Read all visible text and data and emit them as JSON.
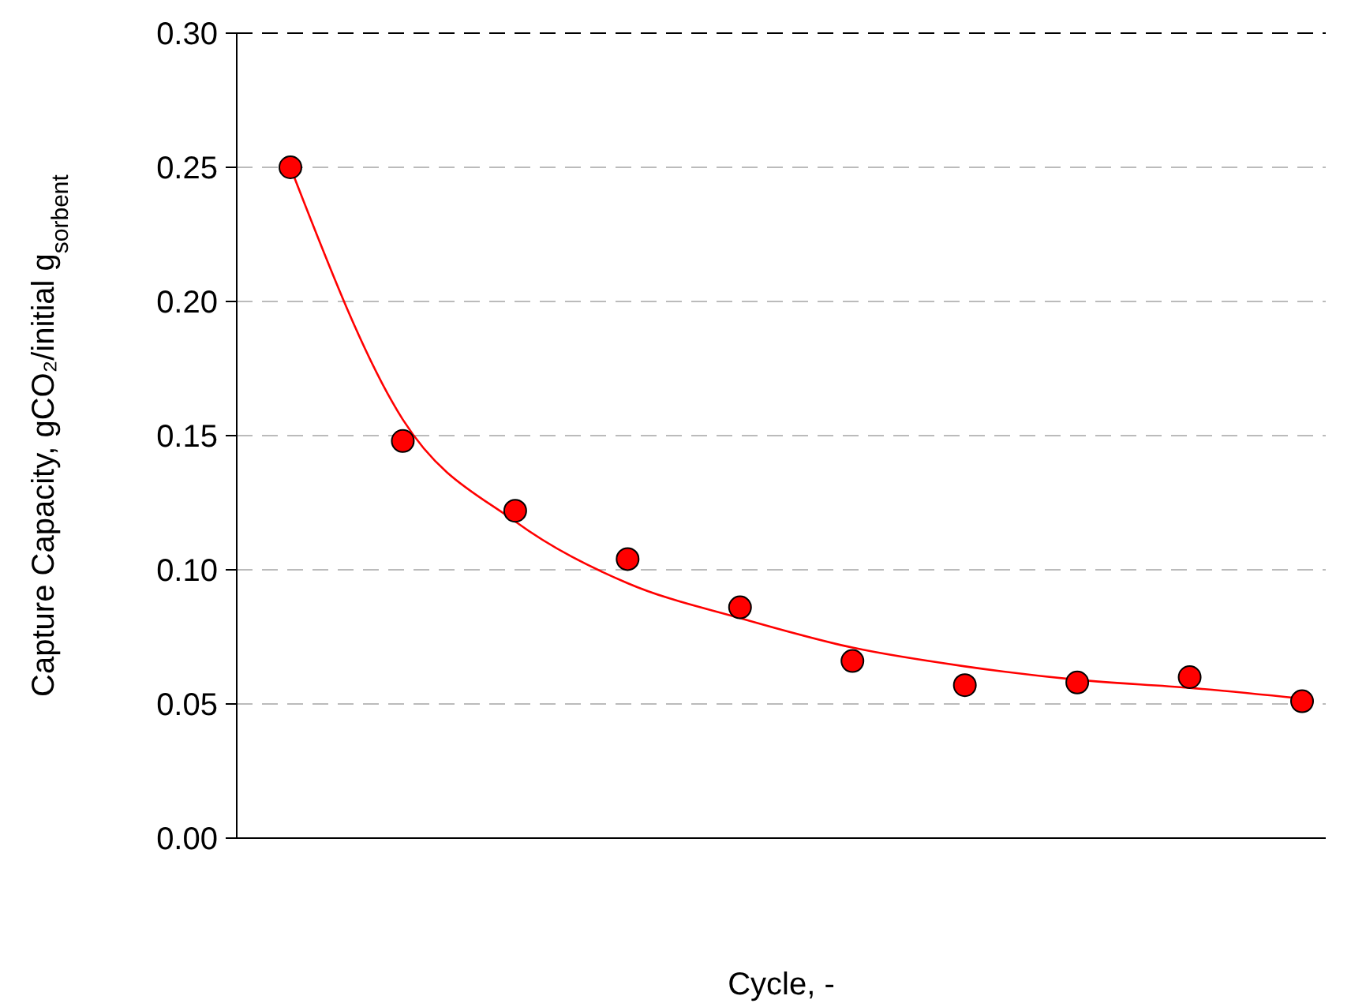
{
  "chart_data": {
    "type": "scatter",
    "xlabel": "Cycle, -",
    "ylabel": "Capture Capacity, gCO₂/initial g$_{sorbent}$",
    "categories": [
      null,
      null,
      null,
      null,
      null,
      null,
      null,
      null,
      null,
      null
    ],
    "ylim": [
      0,
      0.3
    ],
    "yticks": [
      {
        "value": 0,
        "label": "0.00"
      },
      {
        "value": 0.05,
        "label": "0.05"
      },
      {
        "value": 0.1,
        "label": "0.10"
      },
      {
        "value": 0.15,
        "label": "0.15"
      },
      {
        "value": 0.2,
        "label": "0.20"
      },
      {
        "value": 0.25,
        "label": "0.25"
      },
      {
        "value": 0.3,
        "label": "0.30"
      }
    ],
    "grid": "y",
    "tick_labels": "y",
    "series": [
      {
        "type": "line",
        "color": "#ff0000",
        "marker": "none",
        "line_style": "solid",
        "values": [
          0.25,
          0.156,
          0.118,
          0.095,
          0.082,
          0.071,
          0.064,
          0.059,
          0.056,
          0.052
        ]
      },
      {
        "color": "#ff0000",
        "marker": "circle",
        "values": [
          0.25,
          0.148,
          0.122,
          0.104,
          0.086,
          0.066,
          0.057,
          0.058,
          0.06,
          0.051
        ]
      }
    ]
  }
}
